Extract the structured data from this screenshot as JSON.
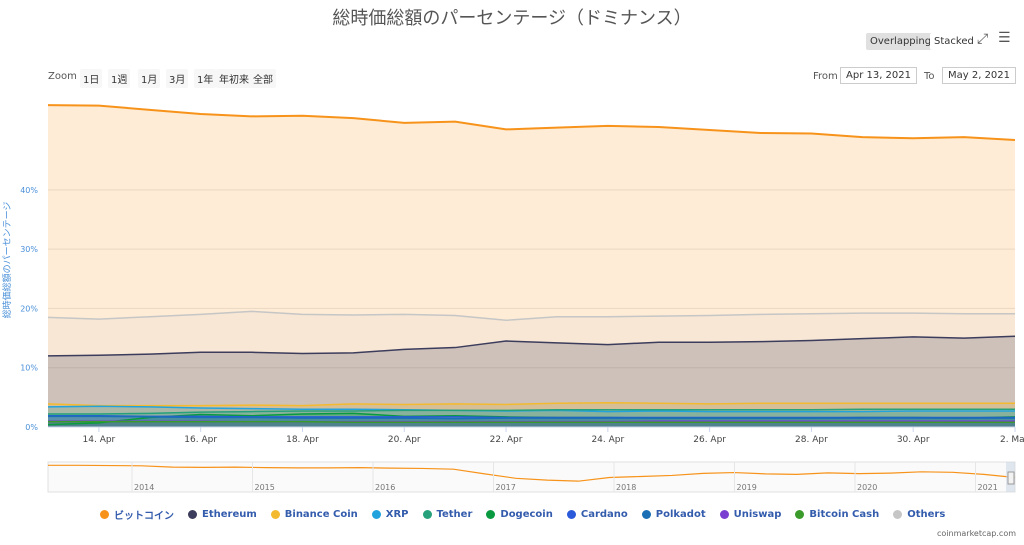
{
  "toolbar": {
    "overlapping_label": "Overlapping",
    "stacked_label": "Stacked",
    "zoom_label": "Zoom",
    "range_buttons": [
      "1日",
      "1週",
      "1月",
      "3月",
      "1年",
      "年初来",
      "全部"
    ],
    "from_label": "From",
    "from_value": "Apr 13, 2021",
    "to_label": "To",
    "to_value": "May 2, 2021"
  },
  "icons": {
    "fullscreen": "fullscreen-icon",
    "menu": "hamburger-menu-icon"
  },
  "credit": "coinmarketcap.com",
  "chart_data": {
    "type": "area",
    "title": "総時価総額のパーセンテージ（ドミナンス）",
    "ylabel": "総時価総額のパーセンテージ",
    "xlabel": "",
    "ylim": [
      0,
      56
    ],
    "yticks": [
      "0%",
      "10%",
      "20%",
      "30%",
      "40%"
    ],
    "xticks": [
      "14. Apr",
      "16. Apr",
      "18. Apr",
      "20. Apr",
      "22. Apr",
      "24. Apr",
      "26. Apr",
      "28. Apr",
      "30. Apr",
      "2. May"
    ],
    "x_start": "2021-04-13",
    "x_end": "2021-05-02",
    "grid": true,
    "legend_position": "bottom",
    "colors": {
      "bitcoin": "#f7931a",
      "ethereum": "#3c3c5d",
      "binance": "#f3ba2f",
      "xrp": "#23a3dd",
      "tether": "#26a17b",
      "dogecoin": "#099a3f",
      "cardano": "#2a5ada",
      "polkadot": "#1a6fb5",
      "uniswap": "#7a3fd1",
      "bitcoincash": "#3a9a2a",
      "others": "#c6c6c6"
    },
    "series": [
      {
        "name": "ビットコイン",
        "color": "#f7931a",
        "values": [
          54.3,
          54.2,
          53.5,
          52.8,
          52.4,
          52.5,
          52.1,
          51.3,
          51.5,
          50.2,
          50.5,
          50.8,
          50.6,
          50.1,
          49.6,
          49.5,
          48.9,
          48.7,
          48.9,
          48.4
        ]
      },
      {
        "name": "Ethereum",
        "color": "#3c3c5d",
        "values": [
          12.0,
          12.1,
          12.3,
          12.6,
          12.6,
          12.4,
          12.5,
          13.1,
          13.4,
          14.5,
          14.2,
          13.9,
          14.3,
          14.3,
          14.4,
          14.6,
          14.9,
          15.2,
          15.0,
          15.3
        ]
      },
      {
        "name": "Binance Coin",
        "color": "#f3ba2f",
        "values": [
          3.9,
          3.6,
          3.6,
          3.6,
          3.7,
          3.6,
          3.9,
          3.8,
          3.9,
          3.8,
          4.0,
          4.1,
          4.0,
          3.9,
          4.0,
          4.0,
          4.0,
          4.0,
          4.0,
          4.0
        ]
      },
      {
        "name": "XRP",
        "color": "#23a3dd",
        "values": [
          3.4,
          3.5,
          3.4,
          3.2,
          3.1,
          3.0,
          3.0,
          2.9,
          2.8,
          2.7,
          2.8,
          2.6,
          2.7,
          2.6,
          2.6,
          2.6,
          2.6,
          2.7,
          2.7,
          2.7
        ]
      },
      {
        "name": "Tether",
        "color": "#26a17b",
        "values": [
          2.2,
          2.2,
          2.3,
          2.5,
          2.6,
          2.7,
          2.7,
          2.8,
          2.8,
          2.8,
          2.9,
          2.9,
          2.9,
          2.9,
          2.9,
          2.9,
          3.0,
          3.0,
          3.0,
          3.0
        ]
      },
      {
        "name": "Dogecoin",
        "color": "#099a3f",
        "values": [
          0.4,
          0.7,
          1.6,
          2.1,
          1.9,
          2.2,
          2.3,
          1.8,
          1.9,
          1.7,
          1.6,
          1.6,
          1.5,
          1.5,
          1.5,
          1.5,
          1.6,
          1.6,
          1.5,
          1.7
        ]
      },
      {
        "name": "Cardano",
        "color": "#2a5ada",
        "values": [
          1.9,
          1.9,
          1.8,
          1.8,
          1.7,
          1.7,
          1.7,
          1.7,
          1.7,
          1.6,
          1.6,
          1.6,
          1.6,
          1.6,
          1.6,
          1.6,
          1.6,
          1.6,
          1.6,
          1.6
        ]
      },
      {
        "name": "Polkadot",
        "color": "#1a6fb5",
        "values": [
          1.8,
          1.8,
          1.7,
          1.6,
          1.6,
          1.5,
          1.5,
          1.5,
          1.4,
          1.5,
          1.5,
          1.5,
          1.5,
          1.5,
          1.5,
          1.5,
          1.5,
          1.5,
          1.5,
          1.5
        ]
      },
      {
        "name": "Uniswap",
        "color": "#7a3fd1",
        "values": [
          1.0,
          1.0,
          1.0,
          1.0,
          0.9,
          0.9,
          0.9,
          0.9,
          0.9,
          0.9,
          0.9,
          0.9,
          1.0,
          1.0,
          1.0,
          1.0,
          1.0,
          1.0,
          1.0,
          1.0
        ]
      },
      {
        "name": "Bitcoin Cash",
        "color": "#3a9a2a",
        "values": [
          0.9,
          0.9,
          0.9,
          0.9,
          0.9,
          0.9,
          0.8,
          0.8,
          0.8,
          0.8,
          0.8,
          0.8,
          0.8,
          0.8,
          0.8,
          0.8,
          0.8,
          0.8,
          0.8,
          0.8
        ]
      },
      {
        "name": "Others",
        "color": "#c6c6c6",
        "values": [
          18.5,
          18.2,
          18.6,
          19.0,
          19.5,
          19.0,
          18.9,
          19.0,
          18.8,
          18.0,
          18.6,
          18.6,
          18.7,
          18.8,
          19.0,
          19.1,
          19.2,
          19.2,
          19.1,
          19.1
        ]
      }
    ],
    "navigator": {
      "xticks": [
        "2014",
        "2015",
        "2016",
        "2017",
        "2018",
        "2019",
        "2020",
        "2021"
      ],
      "values": [
        95,
        95,
        94,
        93,
        88,
        87,
        88,
        86,
        85,
        85,
        86,
        84,
        83,
        80,
        62,
        45,
        38,
        34,
        48,
        52,
        56,
        64,
        67,
        62,
        60,
        66,
        63,
        65,
        70,
        68,
        60,
        48
      ]
    }
  }
}
